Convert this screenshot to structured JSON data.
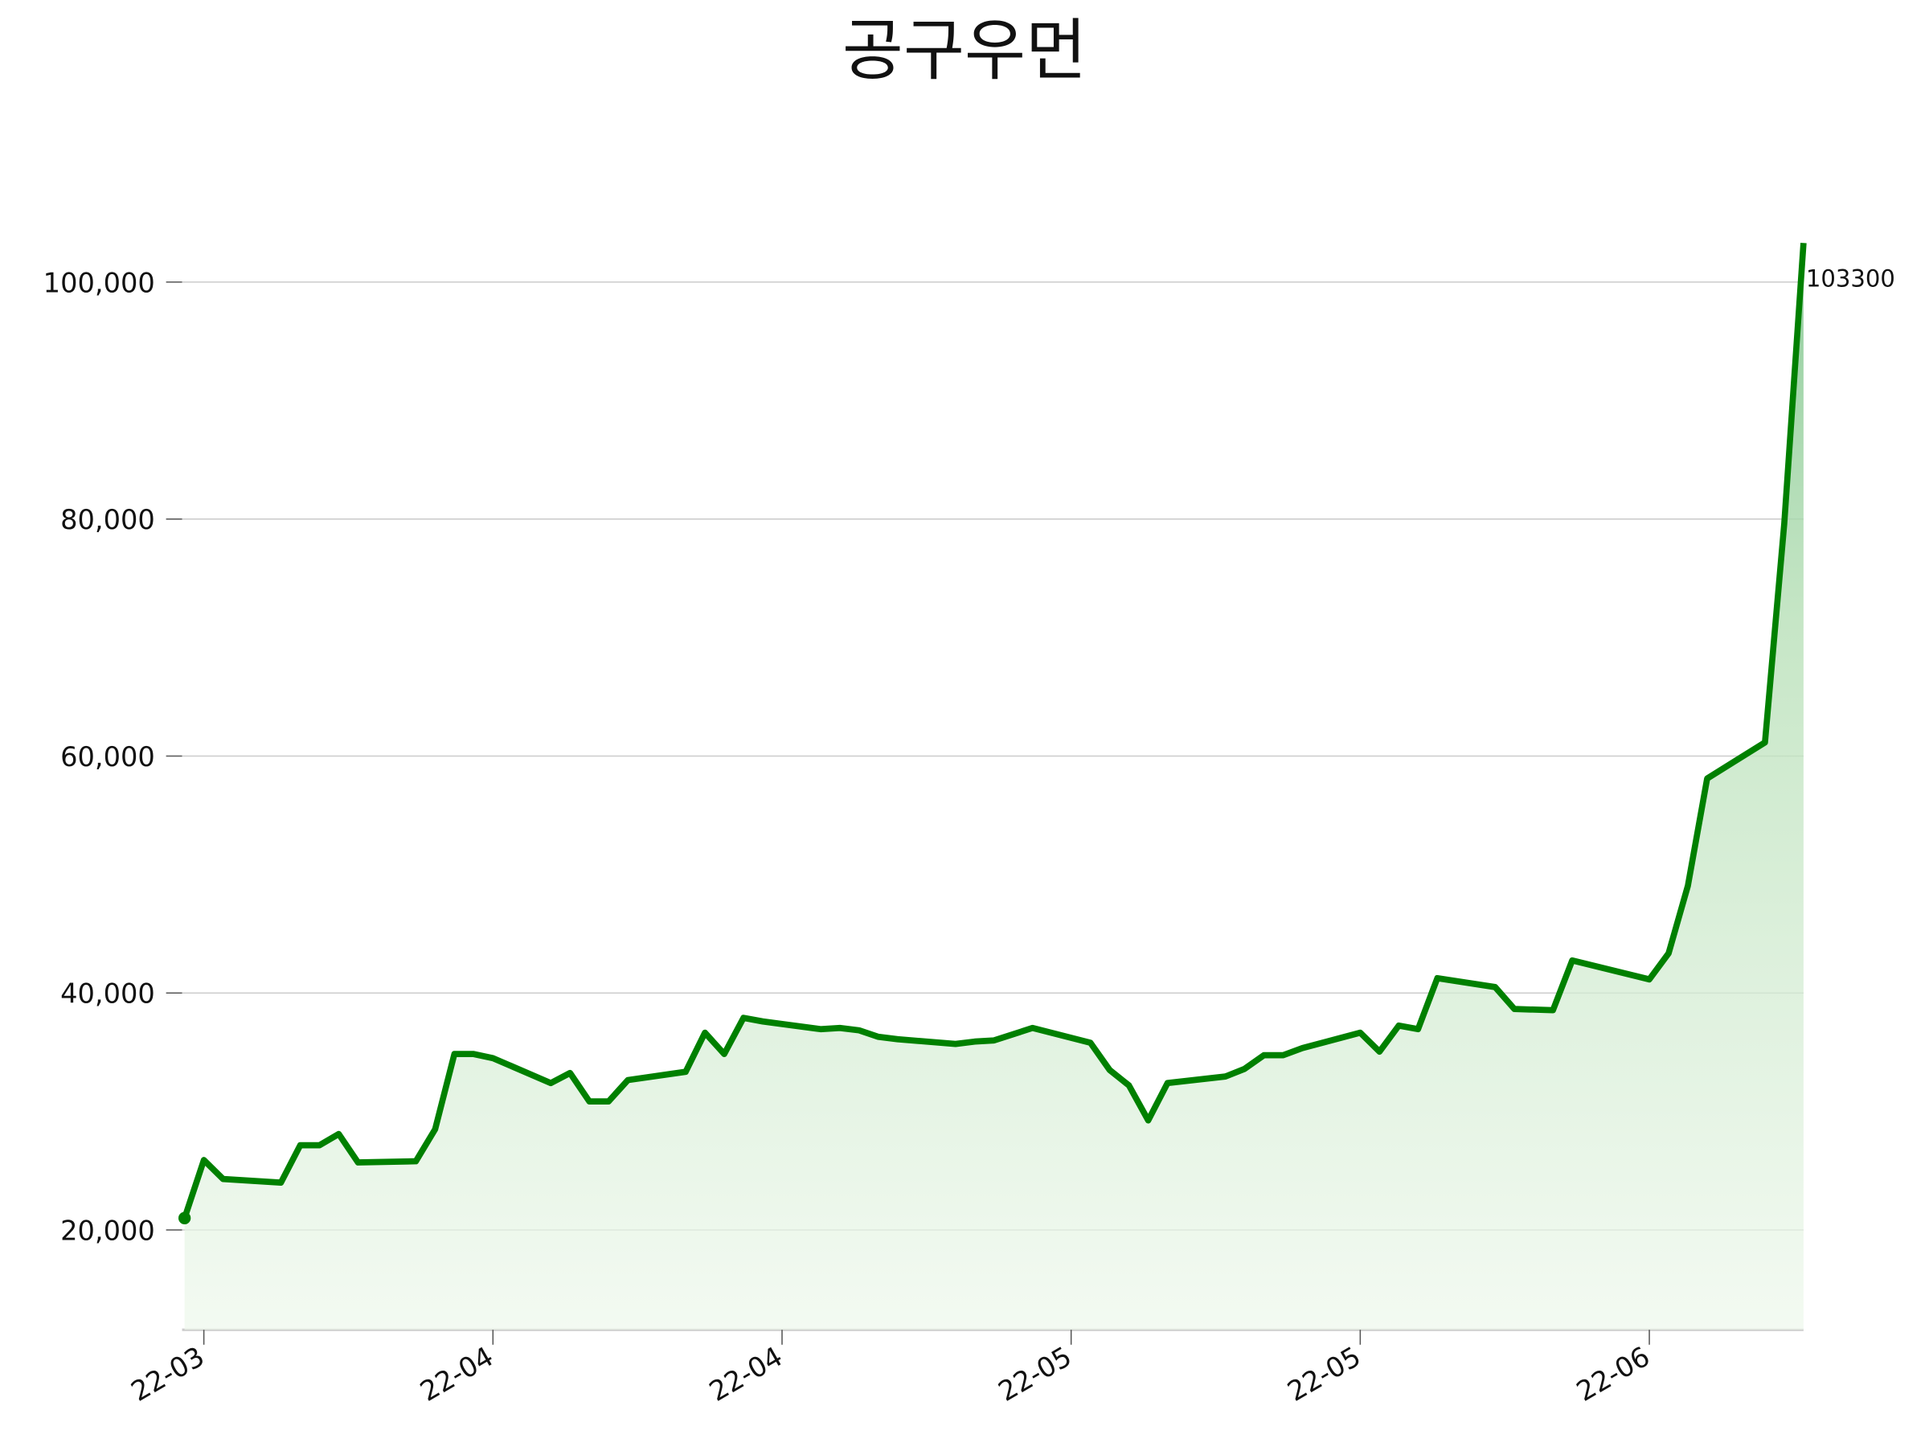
{
  "chart_data": {
    "type": "line",
    "title": "공구우먼",
    "x": [
      0,
      1,
      2,
      5,
      6,
      7,
      8,
      9,
      12,
      13,
      14,
      15,
      16,
      19,
      20,
      21,
      22,
      23,
      26,
      27,
      28,
      29,
      30,
      33,
      34,
      35,
      36,
      37,
      40,
      41,
      42,
      44,
      47,
      48,
      49,
      50,
      51,
      54,
      55,
      56,
      57,
      58,
      61,
      62,
      63,
      64,
      65,
      68,
      69,
      71,
      72,
      76,
      77,
      78,
      79,
      82,
      83,
      84
    ],
    "series": [
      {
        "name": "공구우먼",
        "color": "#008000",
        "values": [
          21000,
          25900,
          24300,
          24000,
          27150,
          27150,
          28100,
          25700,
          25800,
          28500,
          34850,
          34850,
          34500,
          32400,
          33250,
          30850,
          30850,
          32650,
          33350,
          36650,
          34850,
          37900,
          37600,
          36950,
          37050,
          36850,
          36300,
          36100,
          35700,
          35900,
          36000,
          37050,
          35800,
          33500,
          32200,
          29250,
          32400,
          32950,
          33600,
          34750,
          34750,
          35350,
          36650,
          35050,
          37250,
          36950,
          41250,
          40500,
          38650,
          38550,
          42750,
          41150,
          43350,
          49050,
          58100,
          61150,
          79600,
          103300
        ]
      }
    ],
    "xlim": [
      -0.13,
      84
    ],
    "xticks": [
      {
        "value": 1,
        "label": "22-03"
      },
      {
        "value": 16,
        "label": "22-04"
      },
      {
        "value": 31,
        "label": "22-04"
      },
      {
        "value": 46,
        "label": "22-05"
      },
      {
        "value": 61,
        "label": "22-05"
      },
      {
        "value": 76,
        "label": "22-06"
      }
    ],
    "ylim": [
      11580,
      107700
    ],
    "yticks": [
      {
        "value": 20000,
        "label": "20,000"
      },
      {
        "value": 40000,
        "label": "40,000"
      },
      {
        "value": 60000,
        "label": "60,000"
      },
      {
        "value": 80000,
        "label": "80,000"
      },
      {
        "value": 100000,
        "label": "100,000"
      }
    ],
    "grid": true
  }
}
